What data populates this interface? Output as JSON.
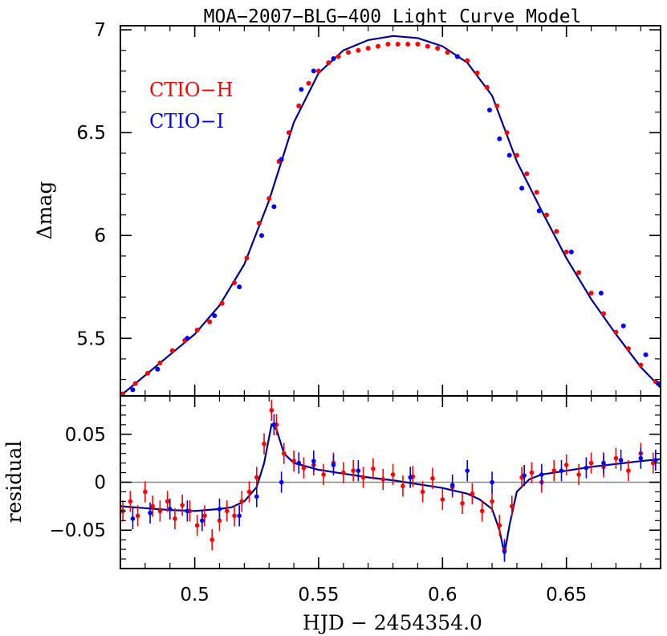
{
  "chart_data": [
    {
      "type": "scatter",
      "title": "MOA−2007−BLG−400 Light Curve Model",
      "ylabel": "Δmag",
      "xlabel": "",
      "xlim": [
        0.47,
        0.688
      ],
      "ylim": [
        5.22,
        7.02
      ],
      "x_ticks": [
        0.5,
        0.55,
        0.6,
        0.65
      ],
      "y_ticks": [
        5.5,
        6,
        6.5,
        7
      ],
      "y_tick_labels": [
        "5.5",
        "6",
        "6.5",
        "7"
      ],
      "legend": [
        "CTIO−H",
        "CTIO−I"
      ],
      "legend_position": "top-left",
      "model_curve": {
        "color": "#00008b",
        "x": [
          0.47,
          0.48,
          0.49,
          0.5,
          0.51,
          0.52,
          0.53,
          0.535,
          0.54,
          0.55,
          0.56,
          0.57,
          0.58,
          0.59,
          0.6,
          0.61,
          0.62,
          0.625,
          0.63,
          0.64,
          0.65,
          0.66,
          0.67,
          0.68,
          0.688
        ],
        "y": [
          5.22,
          5.32,
          5.42,
          5.52,
          5.66,
          5.86,
          6.17,
          6.36,
          6.55,
          6.79,
          6.9,
          6.95,
          6.97,
          6.96,
          6.92,
          6.84,
          6.68,
          6.52,
          6.36,
          6.12,
          5.89,
          5.69,
          5.52,
          5.36,
          5.26
        ]
      },
      "series": [
        {
          "name": "CTIO−H",
          "color": "#ff0000",
          "x": [
            0.471,
            0.476,
            0.481,
            0.486,
            0.491,
            0.496,
            0.501,
            0.506,
            0.511,
            0.516,
            0.521,
            0.526,
            0.53,
            0.534,
            0.538,
            0.542,
            0.546,
            0.55,
            0.554,
            0.558,
            0.562,
            0.566,
            0.57,
            0.574,
            0.578,
            0.582,
            0.586,
            0.59,
            0.594,
            0.598,
            0.602,
            0.606,
            0.61,
            0.614,
            0.618,
            0.622,
            0.626,
            0.63,
            0.634,
            0.638,
            0.642,
            0.646,
            0.65,
            0.655,
            0.66,
            0.665,
            0.67,
            0.675,
            0.68,
            0.686
          ],
          "y": [
            5.23,
            5.28,
            5.33,
            5.38,
            5.44,
            5.49,
            5.54,
            5.58,
            5.67,
            5.77,
            5.89,
            6.06,
            6.18,
            6.36,
            6.5,
            6.63,
            6.74,
            6.8,
            6.84,
            6.87,
            6.89,
            6.9,
            6.91,
            6.92,
            6.93,
            6.93,
            6.93,
            6.93,
            6.92,
            6.91,
            6.89,
            6.87,
            6.85,
            6.79,
            6.72,
            6.63,
            6.5,
            6.39,
            6.3,
            6.21,
            6.1,
            6.02,
            5.92,
            5.82,
            5.72,
            5.62,
            5.53,
            5.45,
            5.37,
            5.29
          ]
        },
        {
          "name": "CTIO−I",
          "color": "#0000ff",
          "x": [
            0.475,
            0.485,
            0.497,
            0.508,
            0.518,
            0.527,
            0.532,
            0.535,
            0.543,
            0.548,
            0.556,
            0.606,
            0.619,
            0.623,
            0.627,
            0.632,
            0.639,
            0.652,
            0.664,
            0.673,
            0.682,
            0.687
          ],
          "y": [
            5.25,
            5.35,
            5.5,
            5.61,
            5.75,
            6.0,
            6.14,
            6.37,
            6.71,
            6.8,
            6.86,
            6.87,
            6.61,
            6.47,
            6.39,
            6.23,
            6.12,
            5.92,
            5.72,
            5.56,
            5.42,
            5.28
          ]
        }
      ]
    },
    {
      "type": "scatter",
      "title": "",
      "ylabel": "residual",
      "xlabel": "HJD − 2454354.0",
      "xlim": [
        0.47,
        0.688
      ],
      "ylim": [
        -0.09,
        0.09
      ],
      "x_ticks": [
        0.5,
        0.55,
        0.6,
        0.65
      ],
      "x_tick_labels": [
        "0.5",
        "0.55",
        "0.6",
        "0.65"
      ],
      "y_ticks": [
        -0.05,
        0,
        0.05
      ],
      "y_tick_labels": [
        "−0.05",
        "0",
        "0.05"
      ],
      "zero_line": true,
      "model_curve": {
        "color": "#00008b",
        "x": [
          0.47,
          0.48,
          0.49,
          0.5,
          0.51,
          0.515,
          0.52,
          0.525,
          0.528,
          0.531,
          0.533,
          0.536,
          0.54,
          0.55,
          0.56,
          0.57,
          0.58,
          0.59,
          0.6,
          0.61,
          0.615,
          0.62,
          0.623,
          0.625,
          0.627,
          0.63,
          0.635,
          0.64,
          0.65,
          0.66,
          0.67,
          0.68,
          0.688
        ],
        "y": [
          -0.025,
          -0.027,
          -0.029,
          -0.03,
          -0.028,
          -0.026,
          -0.02,
          -0.005,
          0.02,
          0.06,
          0.055,
          0.03,
          0.02,
          0.013,
          0.009,
          0.005,
          0.002,
          -0.002,
          -0.006,
          -0.012,
          -0.018,
          -0.028,
          -0.05,
          -0.075,
          -0.045,
          -0.01,
          0.003,
          0.008,
          0.012,
          0.016,
          0.019,
          0.022,
          0.024
        ]
      },
      "series": [
        {
          "name": "CTIO−H",
          "color": "#ff0000",
          "x": [
            0.471,
            0.474,
            0.477,
            0.48,
            0.483,
            0.486,
            0.489,
            0.492,
            0.495,
            0.498,
            0.501,
            0.504,
            0.507,
            0.51,
            0.513,
            0.516,
            0.519,
            0.522,
            0.525,
            0.528,
            0.531,
            0.533,
            0.536,
            0.54,
            0.544,
            0.548,
            0.552,
            0.556,
            0.56,
            0.564,
            0.568,
            0.572,
            0.576,
            0.58,
            0.584,
            0.588,
            0.592,
            0.596,
            0.6,
            0.604,
            0.608,
            0.612,
            0.616,
            0.62,
            0.623,
            0.625,
            0.628,
            0.632,
            0.636,
            0.64,
            0.645,
            0.65,
            0.655,
            0.66,
            0.665,
            0.67,
            0.675,
            0.68,
            0.685
          ],
          "y": [
            -0.03,
            -0.02,
            -0.035,
            -0.01,
            -0.025,
            -0.03,
            -0.02,
            -0.038,
            -0.024,
            -0.03,
            -0.045,
            -0.035,
            -0.06,
            -0.04,
            -0.03,
            -0.035,
            -0.02,
            -0.01,
            0.005,
            0.04,
            0.075,
            0.06,
            0.03,
            0.022,
            0.015,
            0.018,
            0.008,
            0.02,
            0.01,
            0.012,
            0.005,
            0.014,
            0.003,
            0.008,
            -0.004,
            0.006,
            -0.01,
            0.004,
            -0.018,
            -0.005,
            -0.022,
            -0.012,
            -0.03,
            -0.02,
            -0.045,
            -0.07,
            -0.025,
            0.005,
            0.01,
            0.0,
            0.012,
            0.018,
            0.008,
            0.02,
            0.016,
            0.025,
            0.012,
            0.03,
            0.02
          ]
        },
        {
          "name": "CTIO−I",
          "color": "#0000ff",
          "x": [
            0.475,
            0.482,
            0.49,
            0.497,
            0.503,
            0.51,
            0.518,
            0.525,
            0.532,
            0.535,
            0.542,
            0.548,
            0.556,
            0.566,
            0.587,
            0.604,
            0.61,
            0.62,
            0.625,
            0.633,
            0.64,
            0.648,
            0.658,
            0.665,
            0.672,
            0.68,
            0.686
          ],
          "y": [
            -0.038,
            -0.032,
            -0.028,
            -0.03,
            -0.04,
            -0.028,
            -0.035,
            -0.015,
            0.06,
            0.0,
            0.02,
            0.022,
            0.018,
            0.012,
            0.005,
            -0.003,
            0.012,
            0.0,
            -0.072,
            0.007,
            0.008,
            0.012,
            0.015,
            0.02,
            0.023,
            0.025,
            0.023
          ]
        }
      ]
    }
  ]
}
